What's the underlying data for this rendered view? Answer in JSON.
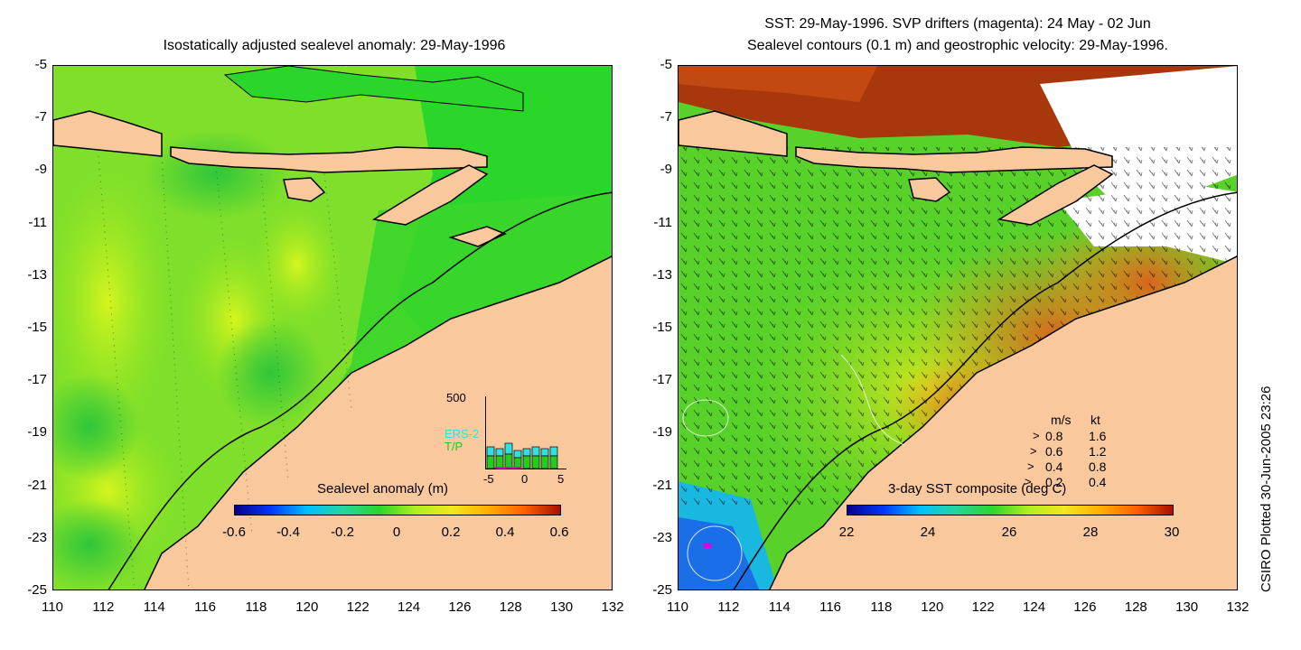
{
  "left_panel": {
    "title": "Isostatically adjusted sealevel anomaly: 29-May-1996",
    "y_ticks": [
      "-5",
      "-7",
      "-9",
      "-11",
      "-13",
      "-15",
      "-17",
      "-19",
      "-21",
      "-23",
      "-25"
    ],
    "x_ticks": [
      "110",
      "112",
      "114",
      "116",
      "118",
      "120",
      "122",
      "124",
      "126",
      "128",
      "130",
      "132"
    ],
    "colorbar": {
      "label": "Sealevel anomaly (m)",
      "ticks": [
        "-0.6",
        "-0.4",
        "-0.2",
        "0",
        "0.2",
        "0.4",
        "0.6"
      ]
    },
    "inset": {
      "y_top": "500",
      "x_ticks": [
        "-5",
        "0",
        "5"
      ],
      "series": [
        {
          "name": "ERS-2",
          "color": "#33e0e0"
        },
        {
          "name": "T/P",
          "color": "#22cc22"
        }
      ]
    }
  },
  "right_panel": {
    "title_line1": "SST: 29-May-1996. SVP drifters (magenta): 24 May - 02 Jun",
    "title_line2": "Sealevel contours (0.1 m) and geostrophic velocity: 29-May-1996.",
    "y_ticks": [
      "-5",
      "-7",
      "-9",
      "-11",
      "-13",
      "-15",
      "-17",
      "-19",
      "-21",
      "-23",
      "-25"
    ],
    "x_ticks": [
      "110",
      "112",
      "114",
      "116",
      "118",
      "120",
      "122",
      "124",
      "126",
      "128",
      "130",
      "132"
    ],
    "colorbar": {
      "label": "3-day SST composite (deg C)",
      "ticks": [
        "22",
        "24",
        "26",
        "28",
        "30"
      ]
    },
    "velocity_legend": {
      "header_ms": "m/s",
      "header_kt": "kt",
      "rows": [
        {
          "ms": "0.8",
          "kt": "1.6"
        },
        {
          "ms": "0.6",
          "kt": "1.2"
        },
        {
          "ms": "0.4",
          "kt": "0.8"
        },
        {
          "ms": "0.2",
          "kt": "0.4"
        }
      ]
    }
  },
  "credit": "CSIRO Plotted 30-Jun-2005 23:26",
  "colors": {
    "land": "#f9c89c",
    "ocean_green": "#2ad62a",
    "ocean_yellowgreen": "#aef01e",
    "sst_orange": "#d6701a",
    "sst_brown": "#a8380c"
  }
}
